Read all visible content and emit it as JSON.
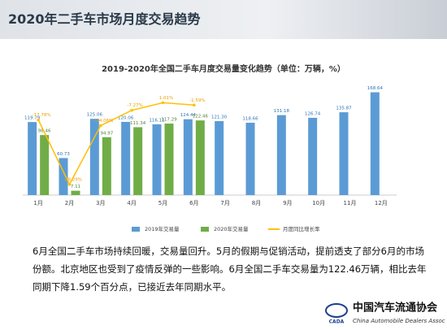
{
  "header": {
    "title": "2020年二手车市场月度交易趋势"
  },
  "chart_data": {
    "type": "bar_line",
    "title": "2019-2020年全国二手车月度交易量变化趋势（单位：万辆，%）",
    "categories": [
      "1月",
      "2月",
      "3月",
      "4月",
      "5月",
      "6月",
      "7月",
      "8月",
      "9月",
      "10月",
      "11月",
      "12月"
    ],
    "ylim": [
      0,
      180
    ],
    "y2lim": [
      -100,
      20
    ],
    "series": [
      {
        "name": "2019年交易量",
        "color": "#5b9bd5",
        "values": [
          119.79,
          60.73,
          125.06,
          120.06,
          116.11,
          124.44,
          121.3,
          118.66,
          131.18,
          126.74,
          135.87,
          168.64
        ],
        "value_labels": [
          "119.79",
          "60.73",
          "125.06",
          "120.06",
          "116.11",
          "124.44",
          "121.30",
          "118.66",
          "131.18",
          "126.74",
          "135.87",
          "168.64"
        ]
      },
      {
        "name": "2020年交易量",
        "color": "#70ad47",
        "values": [
          98.46,
          7.11,
          94.97,
          111.34,
          117.29,
          122.46,
          null,
          null,
          null,
          null,
          null,
          null
        ],
        "value_labels": [
          "98.46",
          "7.11",
          "94.97",
          "111.34",
          "117.29",
          "122.46",
          null,
          null,
          null,
          null,
          null,
          null
        ]
      },
      {
        "name": "月度同比增长率",
        "color": "#ffc000",
        "axis": "y2",
        "values": [
          -17.78,
          -88.29,
          -24.06,
          -7.27,
          1.01,
          -1.59,
          null,
          null,
          null,
          null,
          null,
          null
        ],
        "value_labels": [
          "-17.78%",
          "-88.29%",
          "-24.06%",
          "-7.27%",
          "1.01%",
          "-1.59%",
          null,
          null,
          null,
          null,
          null,
          null
        ]
      }
    ],
    "legend": "bottom"
  },
  "body": {
    "text": "6月全国二手车市场持续回暖，交易量回升。5月的假期与促销活动，提前透支了部分6月的市场份额。北京地区也受到了疫情反弹的一些影响。6月全国二手车交易量为122.46万辆，相比去年同期下降1.59个百分点，已接近去年同期水平。"
  },
  "logo": {
    "name": "中国汽车流通协会",
    "english": "China Automobile Dealers Association",
    "abbr": "CADA"
  }
}
